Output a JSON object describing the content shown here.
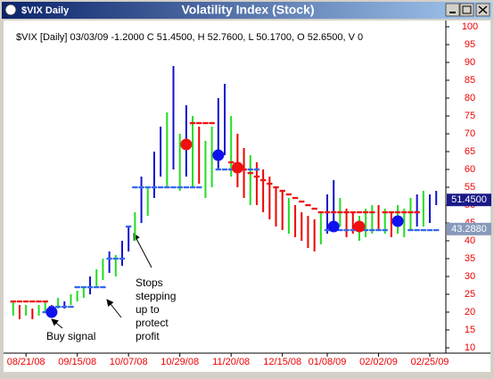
{
  "window": {
    "caption": "$VIX Daily"
  },
  "chart_data": {
    "type": "bar",
    "title": "Volatility Index (Stock)",
    "info": "$VIX [Daily] 03/03/09  -1.2000 C 51.4500, H 52.7600, L 50.1700, O 52.6500, V 0",
    "ylim": [
      10,
      100
    ],
    "yticks": [
      10,
      15,
      20,
      25,
      30,
      35,
      40,
      45,
      50,
      55,
      60,
      65,
      70,
      75,
      80,
      85,
      90,
      95,
      100
    ],
    "xlim": [
      -1.5,
      67.5
    ],
    "xticks": [
      {
        "value": 2,
        "label": "08/21/08"
      },
      {
        "value": 10,
        "label": "09/15/08"
      },
      {
        "value": 18,
        "label": "10/07/08"
      },
      {
        "value": 26,
        "label": "10/29/08"
      },
      {
        "value": 34,
        "label": "11/20/08"
      },
      {
        "value": 42,
        "label": "12/15/08"
      },
      {
        "value": 49,
        "label": "01/08/09"
      },
      {
        "value": 57,
        "label": "02/02/09"
      },
      {
        "value": 65,
        "label": "02/25/09"
      }
    ],
    "bars": {
      "high": [
        23,
        22,
        22,
        21,
        22,
        23,
        22,
        24,
        23,
        25,
        26,
        27,
        30,
        32,
        35,
        37,
        36,
        40,
        44,
        48,
        58,
        55,
        65,
        72,
        76,
        89,
        70,
        78,
        75,
        72,
        68,
        72,
        80,
        84,
        75,
        70,
        66,
        64,
        62,
        60,
        58,
        55,
        54,
        52,
        50,
        48,
        47,
        46,
        48,
        53,
        57,
        52,
        49,
        48,
        47,
        49,
        50,
        50,
        49,
        48,
        50,
        49,
        52,
        53,
        54,
        53,
        54
      ],
      "low": [
        19,
        18,
        19,
        18,
        19,
        20,
        20,
        21,
        21,
        22,
        23,
        24,
        25,
        27,
        29,
        31,
        30,
        33,
        37,
        40,
        45,
        47,
        52,
        58,
        55,
        60,
        54,
        58,
        55,
        56,
        52,
        55,
        60,
        64,
        58,
        55,
        52,
        50,
        50,
        48,
        46,
        44,
        43,
        42,
        41,
        40,
        38,
        37,
        39,
        42,
        45,
        44,
        41,
        42,
        40,
        41,
        42,
        43,
        42,
        41,
        42,
        41,
        43,
        44,
        44,
        45,
        50
      ],
      "colors": [
        "#22dd22",
        "#ee0000",
        "#22dd22",
        "#ee0000",
        "#22dd22",
        "#22dd22",
        "#ee0000",
        "#22dd22",
        "#1111cc",
        "#22dd22",
        "#22dd22",
        "#22dd22",
        "#1111cc",
        "#22dd22",
        "#22dd22",
        "#1111cc",
        "#22dd22",
        "#1111cc",
        "#1111cc",
        "#22dd22",
        "#1111cc",
        "#22dd22",
        "#1111cc",
        "#1111cc",
        "#22dd22",
        "#1111cc",
        "#22dd22",
        "#1111cc",
        "#22dd22",
        "#ee0000",
        "#22dd22",
        "#22dd22",
        "#1111cc",
        "#1111cc",
        "#22dd22",
        "#ee0000",
        "#ee0000",
        "#22dd22",
        "#ee0000",
        "#ee0000",
        "#ee0000",
        "#ee0000",
        "#ee0000",
        "#22dd22",
        "#ee0000",
        "#ee0000",
        "#ee0000",
        "#ee0000",
        "#22dd22",
        "#1111cc",
        "#1111cc",
        "#22dd22",
        "#ee0000",
        "#ee0000",
        "#22dd22",
        "#22dd22",
        "#22dd22",
        "#ee0000",
        "#22dd22",
        "#ee0000",
        "#22dd22",
        "#22dd22",
        "#22dd22",
        "#1111cc",
        "#22dd22",
        "#1111cc",
        "#1111cc"
      ]
    },
    "stops": {
      "support_color": "#3366ee",
      "resistance_color": "#ee1111",
      "support": [
        null,
        null,
        null,
        null,
        null,
        20,
        21.5,
        21.5,
        21.5,
        21.5,
        27,
        27,
        27,
        27,
        27,
        35,
        35,
        35,
        44,
        55,
        55,
        55,
        55,
        55,
        55,
        55,
        55,
        55,
        55,
        55,
        null,
        null,
        60,
        60,
        60,
        60,
        60,
        60,
        60,
        null,
        null,
        null,
        null,
        null,
        null,
        null,
        null,
        null,
        null,
        43,
        43,
        43,
        43,
        43,
        43,
        43,
        43,
        43,
        43,
        null,
        null,
        null,
        43,
        43,
        43,
        43,
        43
      ],
      "resistance": [
        23,
        23,
        23,
        23,
        23,
        23,
        null,
        null,
        null,
        null,
        null,
        null,
        null,
        null,
        null,
        null,
        null,
        null,
        null,
        null,
        null,
        null,
        null,
        null,
        null,
        null,
        null,
        null,
        73,
        73,
        73,
        73,
        null,
        null,
        62,
        61,
        60,
        59,
        58,
        57,
        56,
        55,
        54,
        53,
        52,
        51,
        50,
        49,
        48,
        48,
        48,
        48,
        48,
        48,
        48,
        48,
        48,
        null,
        48,
        48,
        48,
        48,
        48,
        48,
        null,
        null,
        null
      ]
    },
    "signals": {
      "buy_color": "#1111ee",
      "sell_color": "#ee1111",
      "buy": [
        null,
        null,
        null,
        null,
        null,
        null,
        20,
        null,
        null,
        null,
        null,
        null,
        null,
        null,
        null,
        null,
        null,
        null,
        null,
        null,
        null,
        null,
        null,
        null,
        null,
        null,
        null,
        null,
        null,
        null,
        null,
        null,
        64,
        null,
        null,
        null,
        null,
        null,
        null,
        null,
        null,
        null,
        null,
        null,
        null,
        null,
        null,
        null,
        null,
        null,
        44,
        null,
        null,
        null,
        null,
        null,
        null,
        null,
        null,
        null,
        45.5,
        null,
        null,
        null,
        null,
        null,
        null
      ],
      "sell": [
        null,
        null,
        null,
        null,
        null,
        null,
        null,
        null,
        null,
        null,
        null,
        null,
        null,
        null,
        null,
        null,
        null,
        null,
        null,
        null,
        null,
        null,
        null,
        null,
        null,
        null,
        null,
        67,
        null,
        null,
        null,
        null,
        null,
        null,
        null,
        60.5,
        null,
        null,
        null,
        null,
        null,
        null,
        null,
        null,
        null,
        null,
        null,
        null,
        null,
        null,
        null,
        null,
        null,
        null,
        44,
        null,
        null,
        null,
        null,
        null,
        null,
        null,
        null,
        null,
        null,
        null,
        null
      ]
    },
    "last_labels": [
      {
        "value": 51.45,
        "label": "51.4500",
        "color": "#1a1a88"
      },
      {
        "value": 43.288,
        "label": "43.2880",
        "color": "#8899bb"
      }
    ],
    "annotations": {
      "buy": "Buy signal",
      "stops": [
        "Stops",
        "stepping",
        "up to",
        "protect",
        "profit"
      ]
    }
  }
}
